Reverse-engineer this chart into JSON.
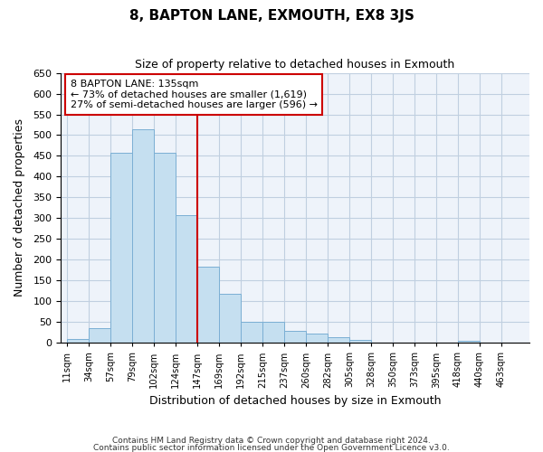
{
  "title": "8, BAPTON LANE, EXMOUTH, EX8 3JS",
  "subtitle": "Size of property relative to detached houses in Exmouth",
  "xlabel": "Distribution of detached houses by size in Exmouth",
  "ylabel": "Number of detached properties",
  "bar_labels": [
    "11sqm",
    "34sqm",
    "57sqm",
    "79sqm",
    "102sqm",
    "124sqm",
    "147sqm",
    "169sqm",
    "192sqm",
    "215sqm",
    "237sqm",
    "260sqm",
    "282sqm",
    "305sqm",
    "328sqm",
    "350sqm",
    "373sqm",
    "395sqm",
    "418sqm",
    "440sqm",
    "463sqm"
  ],
  "bar_values": [
    10,
    35,
    457,
    515,
    457,
    308,
    183,
    118,
    50,
    50,
    28,
    22,
    13,
    8,
    0,
    0,
    0,
    0,
    5,
    0,
    0
  ],
  "bar_color": "#c5dff0",
  "bar_edge_color": "#7bafd4",
  "vline_color": "#cc0000",
  "annotation_title": "8 BAPTON LANE: 135sqm",
  "annotation_line1": "← 73% of detached houses are smaller (1,619)",
  "annotation_line2": "27% of semi-detached houses are larger (596) →",
  "annotation_box_color": "#ffffff",
  "annotation_box_edge": "#cc0000",
  "ylim": [
    0,
    650
  ],
  "yticks": [
    0,
    50,
    100,
    150,
    200,
    250,
    300,
    350,
    400,
    450,
    500,
    550,
    600,
    650
  ],
  "footer1": "Contains HM Land Registry data © Crown copyright and database right 2024.",
  "footer2": "Contains public sector information licensed under the Open Government Licence v3.0.",
  "bg_color": "#ffffff",
  "plot_bg_color": "#eef3fa",
  "grid_color": "#c0cfe0"
}
